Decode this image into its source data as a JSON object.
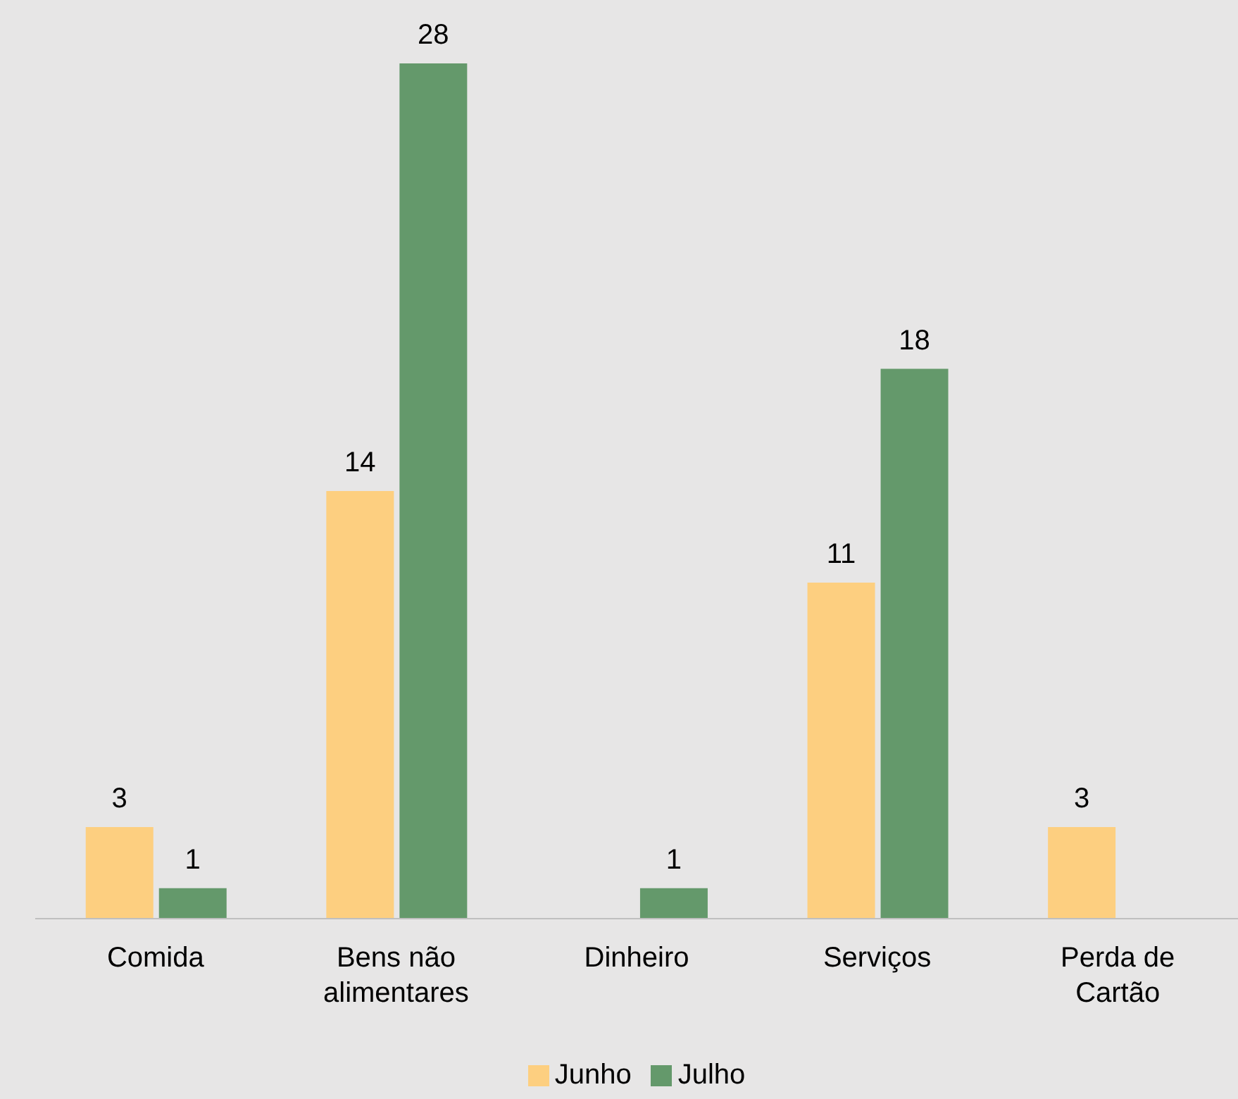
{
  "chart_data": {
    "type": "bar",
    "categories": [
      "Comida",
      "Bens não alimentares",
      "Dinheiro",
      "Serviços",
      "Perda de Cartão"
    ],
    "series": [
      {
        "name": "Junho",
        "color": "#fdcf80",
        "values": [
          3,
          14,
          null,
          11,
          3
        ]
      },
      {
        "name": "Julho",
        "color": "#64996b",
        "values": [
          1,
          28,
          1,
          18,
          null
        ]
      }
    ],
    "data_labels": true,
    "legend": "bottom",
    "grid": false
  }
}
